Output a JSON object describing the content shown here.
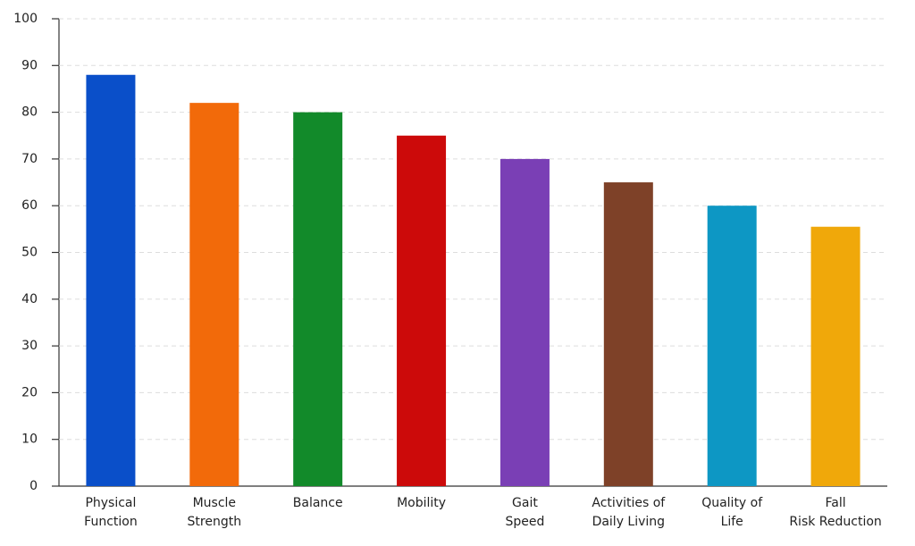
{
  "chart_data": {
    "type": "bar",
    "categories": [
      [
        "Physical",
        "Function"
      ],
      [
        "Muscle",
        "Strength"
      ],
      [
        "Balance"
      ],
      [
        "Mobility"
      ],
      [
        "Gait",
        "Speed"
      ],
      [
        "Activities of",
        "Daily Living"
      ],
      [
        "Quality of",
        "Life"
      ],
      [
        "Fall",
        "Risk Reduction"
      ]
    ],
    "values": [
      88,
      82,
      80,
      75,
      70,
      65,
      60,
      55.5
    ],
    "colors": [
      "#0a4fc9",
      "#f26a0a",
      "#128a2a",
      "#cc0a0a",
      "#7a3fb5",
      "#7e4128",
      "#0d97c4",
      "#f0a80a"
    ],
    "ylim": [
      0,
      100
    ],
    "yticks": [
      0,
      10,
      20,
      30,
      40,
      50,
      60,
      70,
      80,
      90,
      100
    ],
    "grid": true
  }
}
